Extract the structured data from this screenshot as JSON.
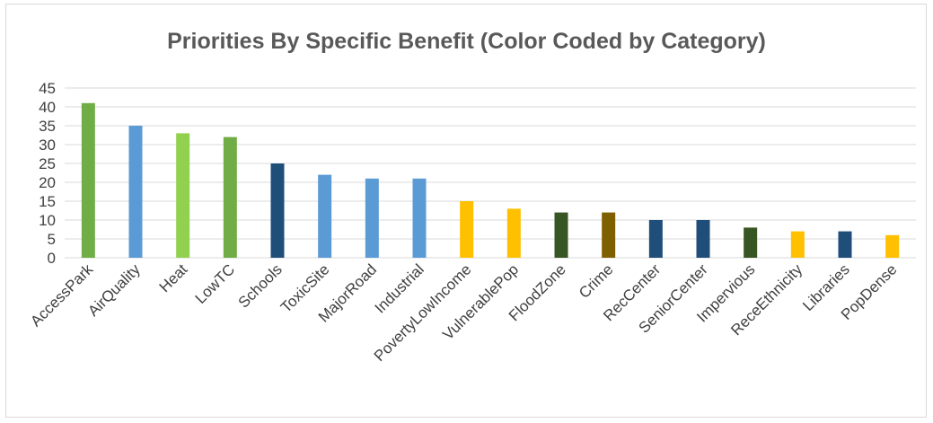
{
  "chart_data": {
    "type": "bar",
    "title": "Priorities By Specific Benefit (Color Coded by Category)",
    "categories": [
      "AccessPark",
      "AirQuality",
      "Heat",
      "LowTC",
      "Schools",
      "ToxicSite",
      "MajorRoad",
      "Industrial",
      "PovertyLowIncome",
      "VulnerablePop",
      "FloodZone",
      "Crime",
      "RecCenter",
      "SeniorCenter",
      "Impervious",
      "ReceEthnicity",
      "Libraries",
      "PopDense"
    ],
    "values": [
      41,
      35,
      33,
      32,
      25,
      22,
      21,
      21,
      15,
      13,
      12,
      12,
      10,
      10,
      8,
      7,
      7,
      6
    ],
    "colors": [
      "#70ad47",
      "#5b9bd5",
      "#92d050",
      "#70ad47",
      "#1f4e79",
      "#5b9bd5",
      "#5b9bd5",
      "#5b9bd5",
      "#ffc000",
      "#ffc000",
      "#375623",
      "#7f6000",
      "#1f4e79",
      "#1f4e79",
      "#375623",
      "#ffc000",
      "#1f4e79",
      "#ffc000"
    ],
    "ylim": [
      0,
      45
    ],
    "yticks": [
      "0",
      "5",
      "10",
      "15",
      "20",
      "25",
      "30",
      "35",
      "40",
      "45"
    ],
    "grid": true,
    "xlabel": "",
    "ylabel": ""
  }
}
